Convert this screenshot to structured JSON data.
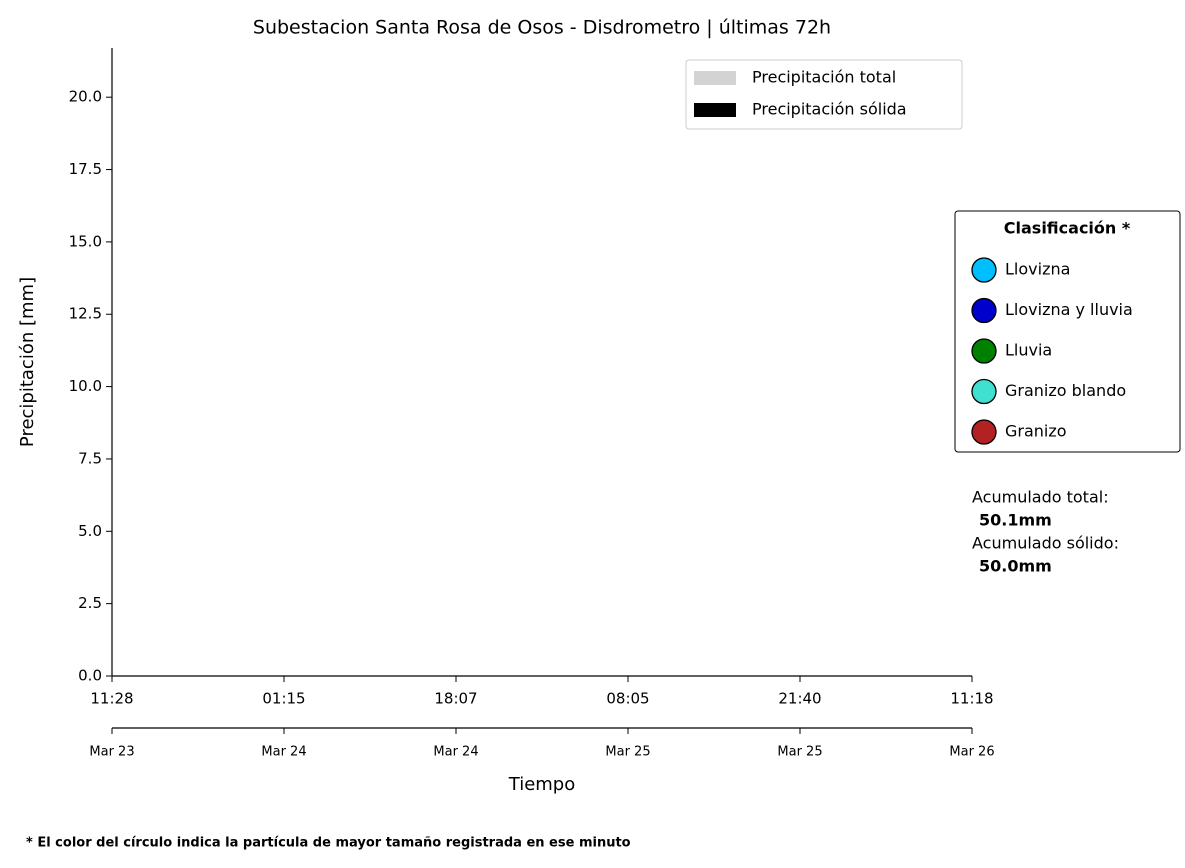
{
  "chart_data": {
    "type": "bar",
    "title": "Subestacion Santa Rosa de Osos - Disdrometro  |  últimas 72h",
    "x_label": "Tiempo",
    "y_label": "Precipitación [mm]",
    "series": [
      {
        "name": "Precipitación total",
        "color": "#d3d3d3",
        "values": []
      },
      {
        "name": "Precipitación sólida",
        "color": "#000000",
        "values": []
      }
    ],
    "categories": [],
    "xticks": [
      "11:28",
      "01:15",
      "18:07",
      "08:05",
      "21:40",
      "11:18"
    ],
    "xticks_secondary": [
      "Mar 23",
      "Mar 24",
      "Mar 24",
      "Mar 25",
      "Mar 25",
      "Mar 26"
    ],
    "ylim": [
      0,
      21.7
    ],
    "yticks": [
      {
        "value": 0,
        "label": "0.0"
      },
      2.5,
      {
        "value": 5,
        "label": "5.0"
      },
      7.5,
      {
        "value": 10,
        "label": "10.0"
      },
      12.5,
      {
        "value": 15,
        "label": "15.0"
      },
      17.5,
      {
        "value": 20,
        "label": "20.0"
      }
    ],
    "grid": false,
    "legend_position": "upper right",
    "classification": {
      "title": "Clasificación *",
      "items": [
        {
          "name": "Llovizna",
          "color": "#00bfff"
        },
        {
          "name": "Llovizna y lluvia",
          "color": "#0000cd"
        },
        {
          "name": "Lluvia",
          "color": "#008000"
        },
        {
          "name": "Granizo blando",
          "color": "#40e0d0"
        },
        {
          "name": "Granizo",
          "color": "#b22222"
        }
      ]
    },
    "annotations": [
      "Acumulado total:",
      "50.1mm",
      "Acumulado sólido:",
      "50.0mm"
    ],
    "footnote": "* El color del círculo indica la partícula de mayor tamaño registrada en ese minuto"
  }
}
